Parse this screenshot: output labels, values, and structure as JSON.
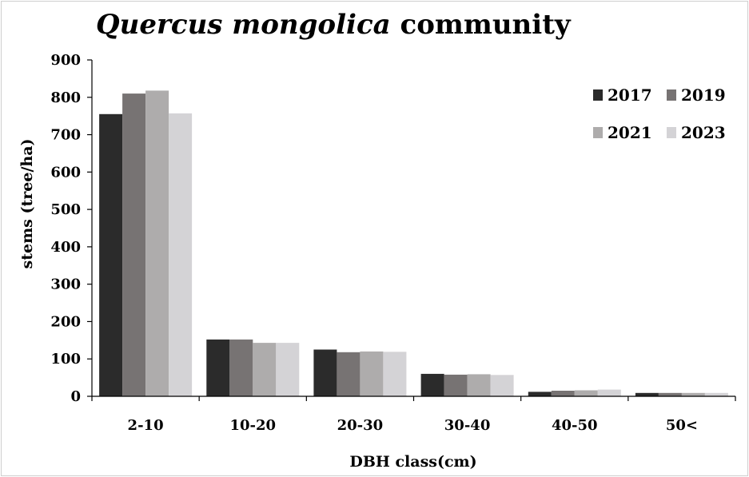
{
  "chart_data": {
    "type": "bar",
    "title": "Quercus mongolica community",
    "title_parts": [
      {
        "text": "Quercus mongolica",
        "style": "italic"
      },
      {
        "text": " community",
        "style": "normal"
      }
    ],
    "xlabel": "DBH class(cm)",
    "ylabel": "stems (tree/ha)",
    "ylim": [
      0,
      900
    ],
    "yticks": [
      "0",
      "100",
      "200",
      "300",
      "400",
      "500",
      "600",
      "700",
      "800",
      "900"
    ],
    "categories": [
      "2-10",
      "10-20",
      "20-30",
      "30-40",
      "40-50",
      "50<"
    ],
    "legend_position": "top-right",
    "grid": false,
    "series": [
      {
        "name": "2017",
        "color": "#2b2b2b",
        "values": [
          755,
          152,
          125,
          60,
          12,
          9
        ]
      },
      {
        "name": "2019",
        "color": "#777373",
        "values": [
          810,
          152,
          118,
          58,
          15,
          9
        ]
      },
      {
        "name": "2021",
        "color": "#aeacac",
        "values": [
          818,
          143,
          120,
          59,
          16,
          9
        ]
      },
      {
        "name": "2023",
        "color": "#d4d3d6",
        "values": [
          757,
          143,
          119,
          57,
          18,
          9
        ]
      }
    ]
  }
}
